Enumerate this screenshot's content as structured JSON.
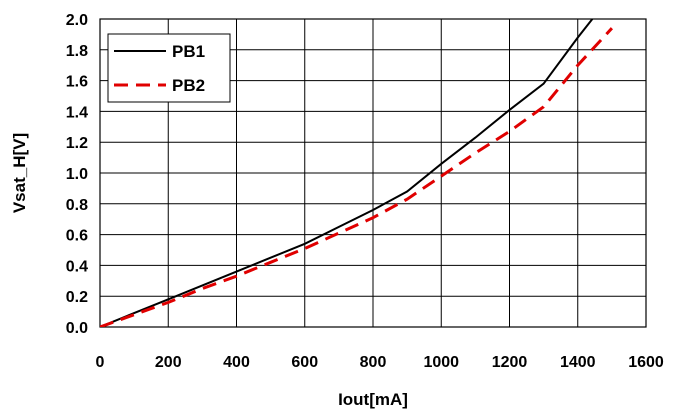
{
  "chart_data": {
    "type": "line",
    "title": "",
    "xlabel": "Iout[mA]",
    "ylabel": "Vsat_H[V]",
    "xlim": [
      0,
      1600
    ],
    "ylim": [
      0,
      2.0
    ],
    "x_ticks": [
      "0",
      "200",
      "400",
      "600",
      "800",
      "1000",
      "1200",
      "1400",
      "1600"
    ],
    "y_ticks": [
      "0.0",
      "0.2",
      "0.4",
      "0.6",
      "0.8",
      "1.0",
      "1.2",
      "1.4",
      "1.6",
      "1.8",
      "2.0"
    ],
    "grid": true,
    "legend_position": "top-left",
    "series": [
      {
        "name": "PB1",
        "color": "#000000",
        "style": "solid",
        "points": [
          [
            0,
            0.0
          ],
          [
            100,
            0.09
          ],
          [
            200,
            0.18
          ],
          [
            300,
            0.27
          ],
          [
            400,
            0.36
          ],
          [
            500,
            0.45
          ],
          [
            600,
            0.54
          ],
          [
            700,
            0.65
          ],
          [
            800,
            0.76
          ],
          [
            900,
            0.88
          ],
          [
            1000,
            1.06
          ],
          [
            1100,
            1.23
          ],
          [
            1200,
            1.41
          ],
          [
            1300,
            1.58
          ],
          [
            1400,
            1.88
          ],
          [
            1450,
            2.02
          ]
        ]
      },
      {
        "name": "PB2",
        "color": "#e00000",
        "style": "dashed",
        "points": [
          [
            0,
            0.0
          ],
          [
            100,
            0.08
          ],
          [
            200,
            0.16
          ],
          [
            300,
            0.25
          ],
          [
            400,
            0.33
          ],
          [
            500,
            0.42
          ],
          [
            600,
            0.51
          ],
          [
            700,
            0.61
          ],
          [
            800,
            0.71
          ],
          [
            900,
            0.83
          ],
          [
            1000,
            0.98
          ],
          [
            1100,
            1.13
          ],
          [
            1200,
            1.27
          ],
          [
            1300,
            1.43
          ],
          [
            1400,
            1.7
          ],
          [
            1500,
            1.94
          ]
        ]
      }
    ]
  }
}
